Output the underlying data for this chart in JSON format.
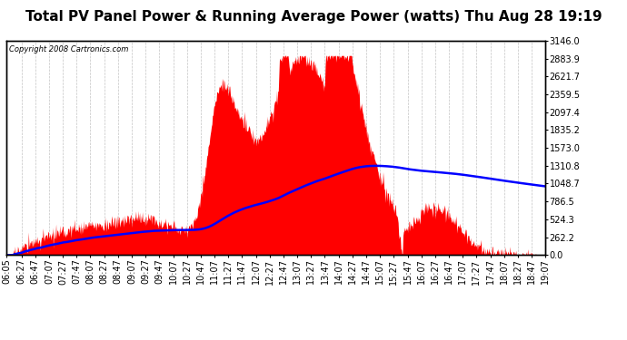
{
  "title": "Total PV Panel Power & Running Average Power (watts) Thu Aug 28 19:19",
  "copyright": "Copyright 2008 Cartronics.com",
  "ylabel_right_ticks": [
    0.0,
    262.2,
    524.3,
    786.5,
    1048.7,
    1310.8,
    1573.0,
    1835.2,
    2097.4,
    2359.5,
    2621.7,
    2883.9,
    3146.0
  ],
  "ymax": 3146.0,
  "ymin": 0.0,
  "bg_color": "#ffffff",
  "plot_bg_color": "#ffffff",
  "fill_color": "#ff0000",
  "avg_line_color": "#0000ff",
  "grid_color": "#aaaaaa",
  "title_fontsize": 11,
  "tick_fontsize": 7,
  "x_tick_labels": [
    "06:05",
    "06:27",
    "06:47",
    "07:07",
    "07:27",
    "07:47",
    "08:07",
    "08:27",
    "08:47",
    "09:07",
    "09:27",
    "09:47",
    "10:07",
    "10:27",
    "10:47",
    "11:07",
    "11:27",
    "11:47",
    "12:07",
    "12:27",
    "12:47",
    "13:07",
    "13:27",
    "13:47",
    "14:07",
    "14:27",
    "14:47",
    "15:07",
    "15:27",
    "15:47",
    "16:07",
    "16:27",
    "16:47",
    "17:07",
    "17:27",
    "17:47",
    "18:07",
    "18:27",
    "18:47",
    "19:07"
  ]
}
